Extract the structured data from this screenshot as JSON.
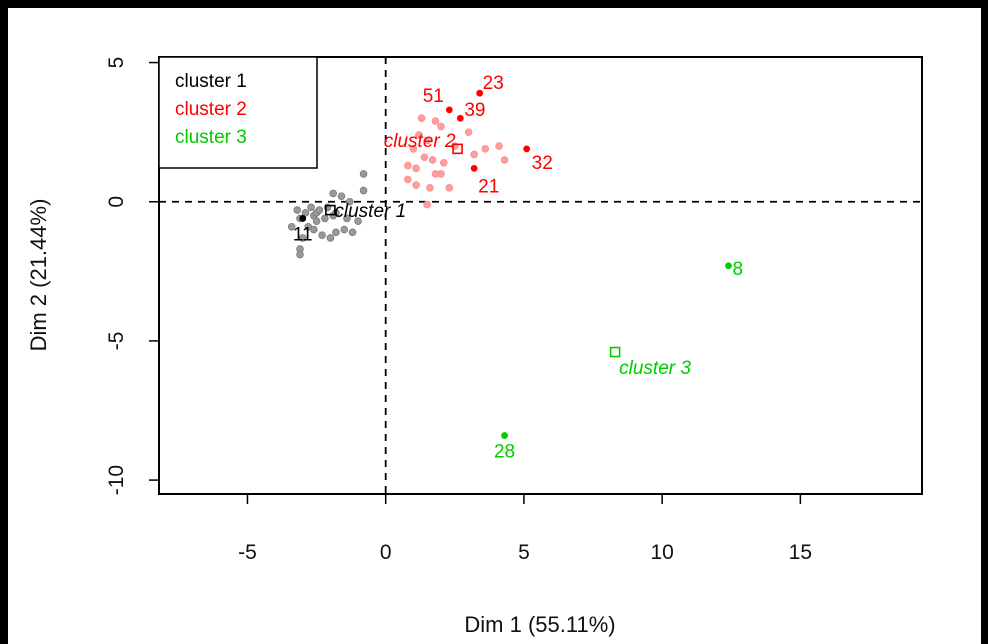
{
  "chart_data": {
    "type": "scatter",
    "xlabel": "Dim 1 (55.11%)",
    "ylabel": "Dim 2 (21.44%)",
    "xlim": [
      -8.2,
      19.4
    ],
    "ylim": [
      -10.5,
      5.2
    ],
    "x_ticks": [
      -5,
      0,
      5,
      10,
      15
    ],
    "y_ticks": [
      5,
      0,
      -5,
      -10
    ],
    "x_tick_labels": [
      "-5",
      "0",
      "5",
      "10",
      "15"
    ],
    "y_tick_labels": [
      "5",
      "0",
      "-5",
      "-10"
    ],
    "reference_lines": {
      "x": 0,
      "y": 0,
      "style": "dashed"
    },
    "legend": {
      "placement": "top-left",
      "entries": [
        {
          "label": "cluster 1",
          "color": "#000000"
        },
        {
          "label": "cluster 2",
          "color": "#ff0000"
        },
        {
          "label": "cluster 3",
          "color": "#00cc00"
        }
      ]
    },
    "series": [
      {
        "name": "cluster 1",
        "color": "#000000",
        "background_points": [
          [
            -3.4,
            -0.9
          ],
          [
            -3.2,
            -0.3
          ],
          [
            -3.1,
            -0.6
          ],
          [
            -3.0,
            -1.3
          ],
          [
            -3.1,
            -1.7
          ],
          [
            -3.1,
            -1.9
          ],
          [
            -2.9,
            -0.4
          ],
          [
            -2.7,
            -0.2
          ],
          [
            -2.6,
            -0.5
          ],
          [
            -2.5,
            -0.4
          ],
          [
            -2.4,
            -0.3
          ],
          [
            -2.8,
            -0.9
          ],
          [
            -2.6,
            -1.0
          ],
          [
            -2.5,
            -0.7
          ],
          [
            -2.3,
            -1.2
          ],
          [
            -2.2,
            -0.6
          ],
          [
            -2.0,
            -1.3
          ],
          [
            -1.9,
            -0.5
          ],
          [
            -1.8,
            -0.4
          ],
          [
            -1.9,
            0.3
          ],
          [
            -1.6,
            0.2
          ],
          [
            -1.5,
            -1.0
          ],
          [
            -1.8,
            -1.1
          ],
          [
            -1.4,
            -0.6
          ],
          [
            -1.2,
            -1.1
          ],
          [
            -1.0,
            -0.7
          ],
          [
            -0.8,
            0.4
          ],
          [
            -0.8,
            1.0
          ],
          [
            -1.3,
            0.0
          ],
          [
            -2.1,
            -0.2
          ]
        ],
        "labeled_points": [
          {
            "label": "11",
            "x": -3.0,
            "y": -0.6
          }
        ],
        "centroid": {
          "label": "cluster 1",
          "x": -2.0,
          "y": -0.3
        }
      },
      {
        "name": "cluster 2",
        "color": "#ff0000",
        "background_points": [
          [
            0.8,
            0.8
          ],
          [
            0.8,
            1.3
          ],
          [
            1.0,
            1.9
          ],
          [
            1.1,
            0.6
          ],
          [
            1.1,
            1.2
          ],
          [
            1.3,
            3.0
          ],
          [
            1.4,
            1.6
          ],
          [
            1.5,
            2.2
          ],
          [
            1.5,
            -0.1
          ],
          [
            1.6,
            0.5
          ],
          [
            1.7,
            1.5
          ],
          [
            1.8,
            2.9
          ],
          [
            1.8,
            1.0
          ],
          [
            2.0,
            2.7
          ],
          [
            2.1,
            1.4
          ],
          [
            2.3,
            0.5
          ],
          [
            2.5,
            2.0
          ],
          [
            3.0,
            2.5
          ],
          [
            3.2,
            1.7
          ],
          [
            3.6,
            1.9
          ],
          [
            4.1,
            2.0
          ],
          [
            4.3,
            1.5
          ],
          [
            2.0,
            1.0
          ],
          [
            1.2,
            2.4
          ]
        ],
        "labeled_points": [
          {
            "label": "51",
            "x": 2.3,
            "y": 3.3
          },
          {
            "label": "23",
            "x": 3.4,
            "y": 3.9
          },
          {
            "label": "39",
            "x": 2.7,
            "y": 3.0
          },
          {
            "label": "32",
            "x": 5.1,
            "y": 1.9
          },
          {
            "label": "21",
            "x": 3.2,
            "y": 1.2
          }
        ],
        "centroid": {
          "label": "cluster 2",
          "x": 2.6,
          "y": 1.9
        }
      },
      {
        "name": "cluster 3",
        "color": "#00cc00",
        "background_points": [],
        "labeled_points": [
          {
            "label": "8",
            "x": 12.4,
            "y": -2.3
          },
          {
            "label": "28",
            "x": 4.3,
            "y": -8.4
          }
        ],
        "centroid": {
          "label": "cluster 3",
          "x": 8.3,
          "y": -5.4
        }
      }
    ]
  }
}
